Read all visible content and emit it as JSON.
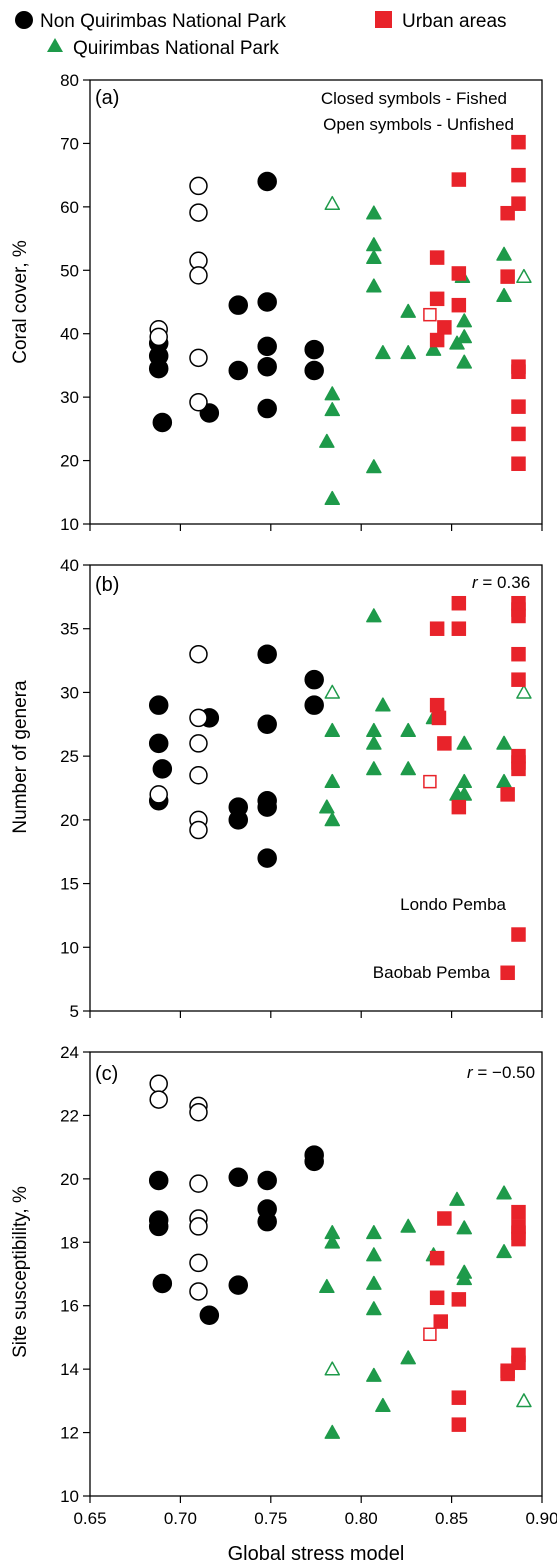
{
  "legend": {
    "items": [
      {
        "label": "Non Quirimbas National Park",
        "marker": "circle",
        "color": "#000000"
      },
      {
        "label": "Urban areas",
        "marker": "square",
        "color": "#e8232a"
      },
      {
        "label": "Quirimbas National Park",
        "marker": "triangle",
        "color": "#1e9a4a"
      }
    ]
  },
  "x_axis": {
    "label": "Global stress model",
    "ticks": [
      "0.65",
      "0.70",
      "0.75",
      "0.80",
      "0.85",
      "0.90"
    ],
    "range": [
      0.65,
      0.9
    ]
  },
  "chart_data": [
    {
      "type": "scatter",
      "panel_label": "(a)",
      "ylabel": "Coral cover, %",
      "ylim": [
        10,
        80
      ],
      "yticks": [
        "10",
        "20",
        "30",
        "40",
        "50",
        "60",
        "70",
        "80"
      ],
      "annotations": [
        "Closed symbols - Fished",
        "Open symbols - Unfished"
      ],
      "series": [
        {
          "group": "Non Quirimbas National Park",
          "state": "Fished",
          "marker": "circle",
          "filled": true,
          "color": "#000000",
          "points": [
            [
              0.688,
              38.5
            ],
            [
              0.688,
              36.5
            ],
            [
              0.688,
              34.5
            ],
            [
              0.69,
              26
            ],
            [
              0.716,
              27.5
            ],
            [
              0.732,
              44.5
            ],
            [
              0.732,
              34.2
            ],
            [
              0.748,
              64
            ],
            [
              0.748,
              45
            ],
            [
              0.748,
              38
            ],
            [
              0.748,
              34.8
            ],
            [
              0.748,
              28.2
            ],
            [
              0.774,
              37.5
            ],
            [
              0.774,
              34.2
            ]
          ]
        },
        {
          "group": "Non Quirimbas National Park",
          "state": "Unfished",
          "marker": "circle",
          "filled": false,
          "color": "#000000",
          "points": [
            [
              0.688,
              40.7
            ],
            [
              0.688,
              39.5
            ],
            [
              0.71,
              63.3
            ],
            [
              0.71,
              59.1
            ],
            [
              0.71,
              51.5
            ],
            [
              0.71,
              49.2
            ],
            [
              0.71,
              36.2
            ],
            [
              0.71,
              29.2
            ]
          ]
        },
        {
          "group": "Quirimbas National Park",
          "state": "Fished",
          "marker": "triangle",
          "filled": true,
          "color": "#1e9a4a",
          "points": [
            [
              0.784,
              30.5
            ],
            [
              0.784,
              28
            ],
            [
              0.781,
              23
            ],
            [
              0.784,
              14
            ],
            [
              0.807,
              59
            ],
            [
              0.807,
              54
            ],
            [
              0.807,
              52
            ],
            [
              0.807,
              47.5
            ],
            [
              0.807,
              19
            ],
            [
              0.812,
              37
            ],
            [
              0.826,
              43.5
            ],
            [
              0.826,
              37
            ],
            [
              0.84,
              37.5
            ],
            [
              0.853,
              38.5
            ],
            [
              0.856,
              49
            ],
            [
              0.857,
              42
            ],
            [
              0.857,
              39.5
            ],
            [
              0.857,
              35.5
            ],
            [
              0.879,
              52.5
            ],
            [
              0.879,
              46
            ]
          ]
        },
        {
          "group": "Quirimbas National Park",
          "state": "Unfished",
          "marker": "triangle",
          "filled": false,
          "color": "#1e9a4a",
          "points": [
            [
              0.784,
              60.5
            ],
            [
              0.89,
              49
            ]
          ]
        },
        {
          "group": "Urban areas",
          "state": "Fished",
          "marker": "square",
          "filled": true,
          "color": "#e8232a",
          "points": [
            [
              0.842,
              52
            ],
            [
              0.842,
              45.5
            ],
            [
              0.842,
              39
            ],
            [
              0.846,
              41
            ],
            [
              0.854,
              64.3
            ],
            [
              0.854,
              49.5
            ],
            [
              0.854,
              44.5
            ],
            [
              0.881,
              59
            ],
            [
              0.881,
              49
            ],
            [
              0.887,
              70.2
            ],
            [
              0.887,
              65
            ],
            [
              0.887,
              60.5
            ],
            [
              0.887,
              34.8
            ],
            [
              0.887,
              34
            ],
            [
              0.887,
              28.5
            ],
            [
              0.887,
              24.2
            ],
            [
              0.887,
              19.5
            ]
          ]
        },
        {
          "group": "Urban areas",
          "state": "Unfished",
          "marker": "square",
          "filled": false,
          "color": "#e8232a",
          "points": [
            [
              0.838,
              43
            ]
          ]
        }
      ]
    },
    {
      "type": "scatter",
      "panel_label": "(b)",
      "ylabel": "Number of genera",
      "ylim": [
        5,
        40
      ],
      "yticks": [
        "5",
        "10",
        "15",
        "20",
        "25",
        "30",
        "35",
        "40"
      ],
      "r_text": "= 0.36",
      "annotations": [
        "Londo Pemba",
        "Baobab Pemba"
      ],
      "series": [
        {
          "group": "Non Quirimbas National Park",
          "state": "Fished",
          "marker": "circle",
          "filled": true,
          "color": "#000000",
          "points": [
            [
              0.688,
              29
            ],
            [
              0.688,
              26
            ],
            [
              0.69,
              24
            ],
            [
              0.688,
              21.5
            ],
            [
              0.716,
              28
            ],
            [
              0.732,
              21
            ],
            [
              0.732,
              20
            ],
            [
              0.748,
              33
            ],
            [
              0.748,
              27.5
            ],
            [
              0.748,
              21.5
            ],
            [
              0.748,
              21
            ],
            [
              0.748,
              17
            ],
            [
              0.774,
              31
            ],
            [
              0.774,
              29
            ]
          ]
        },
        {
          "group": "Non Quirimbas National Park",
          "state": "Unfished",
          "marker": "circle",
          "filled": false,
          "color": "#000000",
          "points": [
            [
              0.688,
              22
            ],
            [
              0.71,
              33
            ],
            [
              0.71,
              28
            ],
            [
              0.71,
              26
            ],
            [
              0.71,
              23.5
            ],
            [
              0.71,
              20
            ],
            [
              0.71,
              19.2
            ]
          ]
        },
        {
          "group": "Quirimbas National Park",
          "state": "Fished",
          "marker": "triangle",
          "filled": true,
          "color": "#1e9a4a",
          "points": [
            [
              0.784,
              27
            ],
            [
              0.784,
              23
            ],
            [
              0.781,
              21
            ],
            [
              0.784,
              20
            ],
            [
              0.807,
              36
            ],
            [
              0.807,
              27
            ],
            [
              0.807,
              26
            ],
            [
              0.807,
              24
            ],
            [
              0.812,
              29
            ],
            [
              0.826,
              27
            ],
            [
              0.826,
              24
            ],
            [
              0.84,
              28
            ],
            [
              0.853,
              22
            ],
            [
              0.857,
              26
            ],
            [
              0.857,
              23
            ],
            [
              0.857,
              22
            ],
            [
              0.879,
              26
            ],
            [
              0.879,
              23
            ]
          ]
        },
        {
          "group": "Quirimbas National Park",
          "state": "Unfished",
          "marker": "triangle",
          "filled": false,
          "color": "#1e9a4a",
          "points": [
            [
              0.784,
              30
            ],
            [
              0.89,
              30
            ]
          ]
        },
        {
          "group": "Urban areas",
          "state": "Fished",
          "marker": "square",
          "filled": true,
          "color": "#e8232a",
          "points": [
            [
              0.842,
              35
            ],
            [
              0.842,
              29
            ],
            [
              0.843,
              28
            ],
            [
              0.846,
              26
            ],
            [
              0.854,
              37
            ],
            [
              0.854,
              35
            ],
            [
              0.854,
              21
            ],
            [
              0.881,
              22
            ],
            [
              0.881,
              8
            ],
            [
              0.887,
              37
            ],
            [
              0.887,
              36.5
            ],
            [
              0.887,
              36
            ],
            [
              0.887,
              33
            ],
            [
              0.887,
              31
            ],
            [
              0.887,
              25
            ],
            [
              0.887,
              24.5
            ],
            [
              0.887,
              24
            ],
            [
              0.887,
              11
            ]
          ]
        },
        {
          "group": "Urban areas",
          "state": "Unfished",
          "marker": "square",
          "filled": false,
          "color": "#e8232a",
          "points": [
            [
              0.838,
              23
            ]
          ]
        }
      ]
    },
    {
      "type": "scatter",
      "panel_label": "(c)",
      "ylabel": "Site susceptibility, %",
      "ylim": [
        10,
        24
      ],
      "yticks": [
        "10",
        "12",
        "14",
        "16",
        "18",
        "20",
        "22",
        "24"
      ],
      "r_text": "= −0.50",
      "series": [
        {
          "group": "Non Quirimbas National Park",
          "state": "Fished",
          "marker": "circle",
          "filled": true,
          "color": "#000000",
          "points": [
            [
              0.688,
              19.95
            ],
            [
              0.688,
              18.7
            ],
            [
              0.688,
              18.5
            ],
            [
              0.69,
              16.7
            ],
            [
              0.716,
              15.7
            ],
            [
              0.732,
              20.05
            ],
            [
              0.732,
              16.65
            ],
            [
              0.748,
              19.95
            ],
            [
              0.748,
              19.05
            ],
            [
              0.748,
              18.65
            ],
            [
              0.774,
              20.75
            ],
            [
              0.774,
              20.55
            ]
          ]
        },
        {
          "group": "Non Quirimbas National Park",
          "state": "Unfished",
          "marker": "circle",
          "filled": false,
          "color": "#000000",
          "points": [
            [
              0.688,
              23
            ],
            [
              0.688,
              22.5
            ],
            [
              0.71,
              22.3
            ],
            [
              0.71,
              22.1
            ],
            [
              0.71,
              19.85
            ],
            [
              0.71,
              18.75
            ],
            [
              0.71,
              18.5
            ],
            [
              0.71,
              17.35
            ],
            [
              0.71,
              16.45
            ]
          ]
        },
        {
          "group": "Quirimbas National Park",
          "state": "Fished",
          "marker": "triangle",
          "filled": true,
          "color": "#1e9a4a",
          "points": [
            [
              0.784,
              18.3
            ],
            [
              0.784,
              18
            ],
            [
              0.781,
              16.6
            ],
            [
              0.784,
              12
            ],
            [
              0.807,
              18.3
            ],
            [
              0.807,
              17.6
            ],
            [
              0.807,
              16.7
            ],
            [
              0.807,
              15.9
            ],
            [
              0.807,
              13.8
            ],
            [
              0.812,
              12.85
            ],
            [
              0.826,
              18.5
            ],
            [
              0.826,
              14.35
            ],
            [
              0.84,
              17.6
            ],
            [
              0.853,
              19.35
            ],
            [
              0.857,
              18.45
            ],
            [
              0.857,
              17.05
            ],
            [
              0.857,
              16.85
            ],
            [
              0.879,
              19.55
            ],
            [
              0.879,
              17.7
            ]
          ]
        },
        {
          "group": "Quirimbas National Park",
          "state": "Unfished",
          "marker": "triangle",
          "filled": false,
          "color": "#1e9a4a",
          "points": [
            [
              0.784,
              14
            ],
            [
              0.89,
              13
            ]
          ]
        },
        {
          "group": "Urban areas",
          "state": "Fished",
          "marker": "square",
          "filled": true,
          "color": "#e8232a",
          "points": [
            [
              0.842,
              17.5
            ],
            [
              0.842,
              16.25
            ],
            [
              0.844,
              15.5
            ],
            [
              0.846,
              18.75
            ],
            [
              0.854,
              16.2
            ],
            [
              0.854,
              13.1
            ],
            [
              0.854,
              12.25
            ],
            [
              0.881,
              13.95
            ],
            [
              0.881,
              13.85
            ],
            [
              0.887,
              18.95
            ],
            [
              0.887,
              18.5
            ],
            [
              0.887,
              18.3
            ],
            [
              0.887,
              18.1
            ],
            [
              0.887,
              14.45
            ],
            [
              0.887,
              14.2
            ]
          ]
        },
        {
          "group": "Urban areas",
          "state": "Unfished",
          "marker": "square",
          "filled": false,
          "color": "#e8232a",
          "points": [
            [
              0.838,
              15.1
            ]
          ]
        }
      ]
    }
  ]
}
